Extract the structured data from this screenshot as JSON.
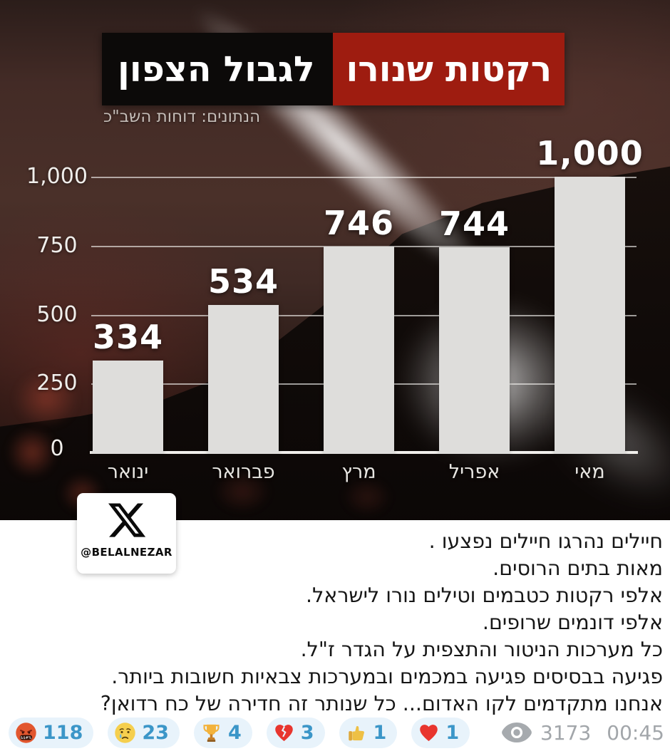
{
  "post": {
    "chart_image": {
      "title_highlight": "רקטות שנורו",
      "title_rest": "לגבול הצפון",
      "subtitle": "הנתונים: דוחות השב\"כ",
      "watermark_handle": "@BELALNEZAR",
      "colors": {
        "highlight_red": "#9e1c10",
        "bar": "#dedddb",
        "background": "#3f2a25"
      }
    },
    "message_lines": [
      "חיילים נהרגו חיילים נפצעו .",
      "מאות בתים הרוסים.",
      "אלפי רקטות כטבמים וטילים נורו לישראל.",
      "אלפי דונמים שרופים.",
      "כל מערכות הניטור והתצפית על הגדר ז\"ל.",
      "פגיעה בבסיסים פגיעה במכמים ובמערכות צבאיות חשובות ביותר.",
      "אנחנו מתקדמים לקו האדום... כל שנותר זה חדירה של כח רדואן?"
    ],
    "reactions": [
      {
        "icon": "enraged-face",
        "emoji": "🤬",
        "count": "118"
      },
      {
        "icon": "crying-face",
        "emoji": "😢",
        "count": "23"
      },
      {
        "icon": "trophy",
        "emoji": "🏆",
        "count": "4"
      },
      {
        "icon": "broken-heart",
        "emoji": "💔",
        "count": "3"
      },
      {
        "icon": "thumbs-up",
        "emoji": "👍",
        "count": "1"
      },
      {
        "icon": "red-heart",
        "emoji": "❤️",
        "count": "1"
      }
    ],
    "footer": {
      "views": "3173",
      "time": "00:45"
    }
  },
  "chart_data": {
    "type": "bar",
    "title": "רקטות שנורו לגבול הצפון",
    "source": "הנתונים: דוחות השב\"כ",
    "categories": [
      "ינואר",
      "פברואר",
      "מרץ",
      "אפריל",
      "מאי"
    ],
    "values": [
      334,
      534,
      746,
      744,
      1000
    ],
    "value_labels": [
      "334",
      "534",
      "746",
      "744",
      "1,000"
    ],
    "y_ticks": [
      {
        "value": 1000,
        "label": "1,000"
      },
      {
        "value": 750,
        "label": "750"
      },
      {
        "value": 500,
        "label": "500"
      },
      {
        "value": 250,
        "label": "250"
      },
      {
        "value": 0,
        "label": "0"
      }
    ],
    "ylim": [
      0,
      1000
    ],
    "xlabel": "",
    "ylabel": "",
    "grid": true,
    "legend": false,
    "bar_color": "#dedddb"
  }
}
